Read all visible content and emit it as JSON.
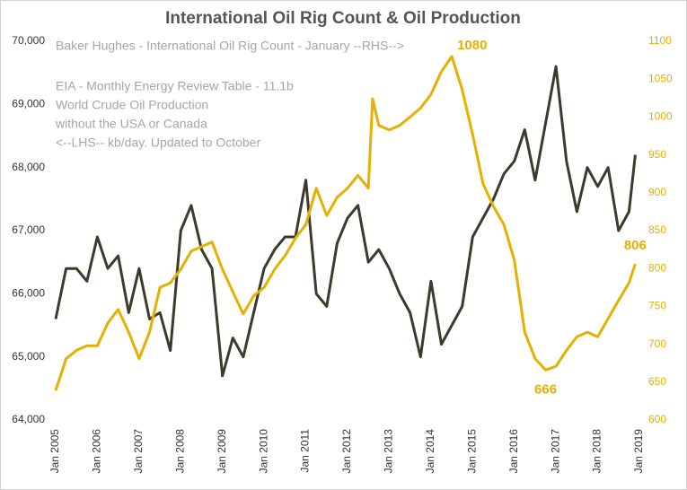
{
  "chart_data": {
    "type": "line",
    "title": "International Oil Rig Count & Oil Production",
    "xlim": [
      2005,
      2019
    ],
    "xticks": [
      {
        "value": 2005,
        "label": "Jan 2005"
      },
      {
        "value": 2006,
        "label": "Jan 2006"
      },
      {
        "value": 2007,
        "label": "Jan 2007"
      },
      {
        "value": 2008,
        "label": "Jan 2008"
      },
      {
        "value": 2009,
        "label": "Jan 2009"
      },
      {
        "value": 2010,
        "label": "Jan 2010"
      },
      {
        "value": 2011,
        "label": "Jan 2011"
      },
      {
        "value": 2012,
        "label": "Jan 2012"
      },
      {
        "value": 2013,
        "label": "Jan 2013"
      },
      {
        "value": 2014,
        "label": "Jan 2014"
      },
      {
        "value": 2015,
        "label": "Jan 2015"
      },
      {
        "value": 2016,
        "label": "Jan 2016"
      },
      {
        "value": 2017,
        "label": "Jan 2017"
      },
      {
        "value": 2018,
        "label": "Jan 2018"
      },
      {
        "value": 2019,
        "label": "Jan 2019"
      }
    ],
    "ylim": [
      64000,
      70000
    ],
    "yticks": [
      {
        "value": 64000,
        "label": "64,000"
      },
      {
        "value": 65000,
        "label": "65,000"
      },
      {
        "value": 66000,
        "label": "66,000"
      },
      {
        "value": 67000,
        "label": "67,000"
      },
      {
        "value": 68000,
        "label": "68,000"
      },
      {
        "value": 69000,
        "label": "69,000"
      },
      {
        "value": 70000,
        "label": "70,000"
      }
    ],
    "y2lim": [
      600,
      1100
    ],
    "y2ticks": [
      600,
      650,
      700,
      750,
      800,
      850,
      900,
      950,
      1000,
      1050,
      1100
    ],
    "series": [
      {
        "name_lines": [
          "EIA - Monthly Energy Review Table - 11.1b",
          "World Crude Oil Production",
          "without the USA or Canada",
          "<--LHS-- kb/day. Updated to October"
        ],
        "color": "#3d3a2c",
        "x": [
          2005,
          2005.25,
          2005.5,
          2005.75,
          2006,
          2006.25,
          2006.5,
          2006.75,
          2007,
          2007.25,
          2007.5,
          2007.75,
          2008,
          2008.25,
          2008.5,
          2008.75,
          2009,
          2009.25,
          2009.5,
          2009.75,
          2010,
          2010.25,
          2010.5,
          2010.75,
          2011,
          2011.25,
          2011.5,
          2011.75,
          2012,
          2012.25,
          2012.5,
          2012.75,
          2013,
          2013.25,
          2013.5,
          2013.75,
          2014,
          2014.25,
          2014.5,
          2014.75,
          2015,
          2015.25,
          2015.5,
          2015.75,
          2016,
          2016.25,
          2016.5,
          2016.75,
          2017,
          2017.25,
          2017.5,
          2017.75,
          2018,
          2018.25,
          2018.5,
          2018.75,
          2018.9
        ],
        "values": [
          65600,
          66400,
          66400,
          66200,
          66900,
          66400,
          66600,
          65700,
          66400,
          65600,
          65700,
          65100,
          67000,
          67400,
          66700,
          66400,
          64700,
          65300,
          65000,
          65700,
          66400,
          66700,
          66900,
          66900,
          67800,
          66000,
          65800,
          66800,
          67200,
          67400,
          66500,
          66700,
          66400,
          66000,
          65700,
          65000,
          66200,
          65200,
          65500,
          65800,
          66900,
          67200,
          67500,
          67900,
          68100,
          68600,
          67800,
          68700,
          69600,
          68100,
          67300,
          68000,
          67700,
          68000,
          67000,
          67300,
          68200
        ]
      },
      {
        "name": "Baker Hughes - International Oil Rig Count - January --RHS-->",
        "color": "#e6b000",
        "axis": "y2",
        "x": [
          2005,
          2005.25,
          2005.5,
          2005.75,
          2006,
          2006.25,
          2006.5,
          2006.75,
          2007,
          2007.25,
          2007.5,
          2007.75,
          2008,
          2008.25,
          2008.5,
          2008.75,
          2009,
          2009.25,
          2009.5,
          2009.75,
          2010,
          2010.25,
          2010.5,
          2010.75,
          2011,
          2011.25,
          2011.5,
          2011.75,
          2012,
          2012.25,
          2012.5,
          2012.6,
          2012.75,
          2013,
          2013.25,
          2013.5,
          2013.75,
          2014,
          2014.25,
          2014.5,
          2014.75,
          2015,
          2015.25,
          2015.5,
          2015.75,
          2016,
          2016.25,
          2016.5,
          2016.75,
          2017,
          2017.25,
          2017.5,
          2017.75,
          2018,
          2018.25,
          2018.5,
          2018.75,
          2018.9
        ],
        "values": [
          639,
          681,
          692,
          698,
          698,
          728,
          746,
          716,
          681,
          716,
          775,
          781,
          799,
          823,
          829,
          835,
          799,
          769,
          740,
          764,
          775,
          799,
          817,
          840,
          858,
          906,
          870,
          894,
          906,
          923,
          906,
          1024,
          989,
          983,
          989,
          1000,
          1012,
          1030,
          1060,
          1080,
          1036,
          977,
          912,
          882,
          858,
          811,
          716,
          681,
          666,
          671,
          692,
          710,
          716,
          710,
          734,
          758,
          781,
          806
        ]
      }
    ],
    "annotations": [
      {
        "text": "1080",
        "x": 2014.5,
        "y": 1080
      },
      {
        "text": "666",
        "x": 2016.75,
        "y": 666
      },
      {
        "text": "806",
        "x": 2018.9,
        "y": 806
      }
    ]
  }
}
